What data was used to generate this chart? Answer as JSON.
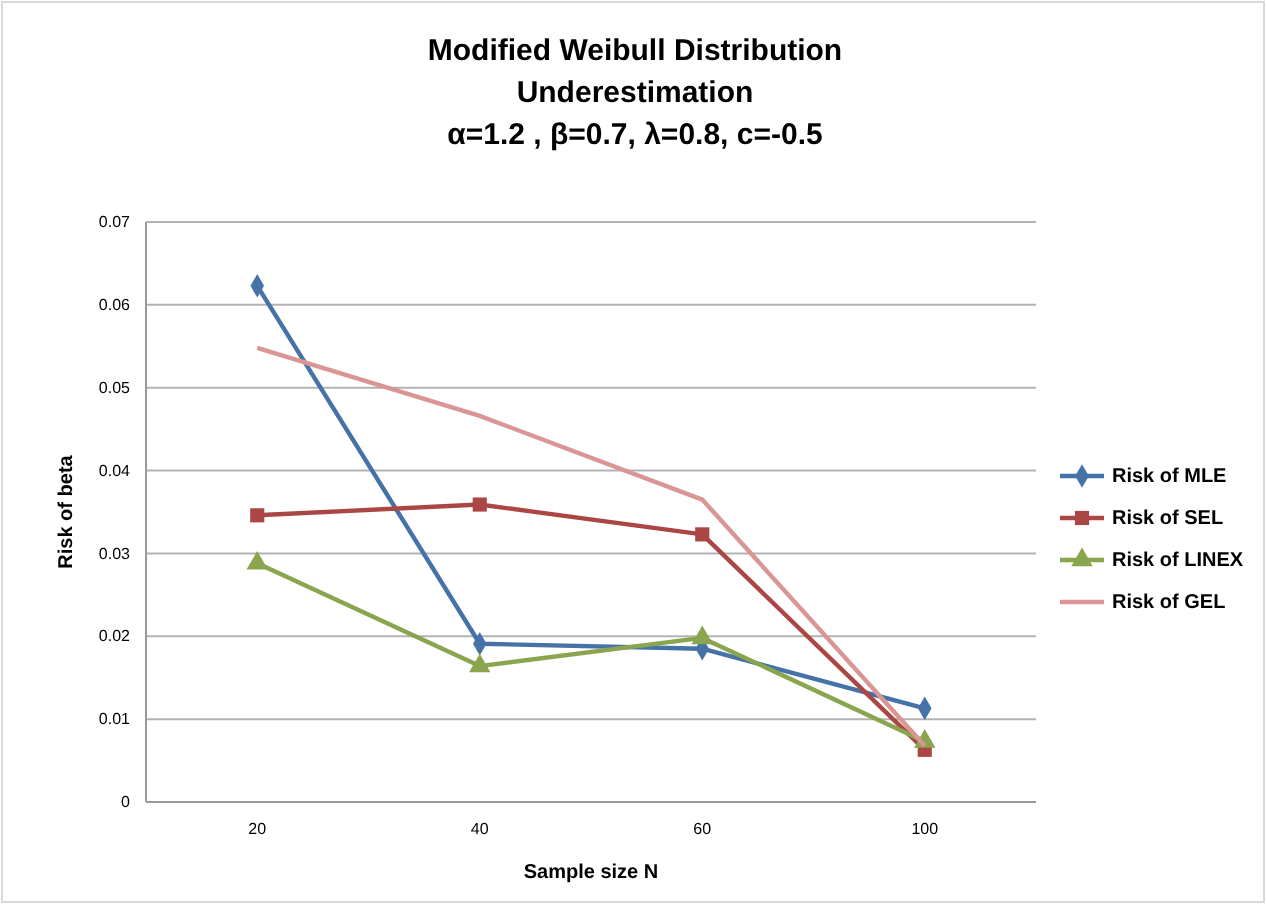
{
  "chart_data": {
    "type": "line",
    "title": "Modified Weibull Distribution\nUnderestimation\nα=1.2 , β=0.7, λ=0.8, c=-0.5",
    "xlabel": "Sample size N",
    "ylabel": "Risk of beta",
    "categories": [
      "20",
      "40",
      "60",
      "100"
    ],
    "series": [
      {
        "name": "Risk of MLE",
        "color": "#4572a7",
        "marker": "diamond",
        "values": [
          0.0623,
          0.0191,
          0.0185,
          0.0113
        ]
      },
      {
        "name": "Risk of SEL",
        "color": "#aa4643",
        "marker": "square",
        "values": [
          0.0346,
          0.0359,
          0.0323,
          0.0063
        ]
      },
      {
        "name": "Risk of LINEX",
        "color": "#89a54e",
        "marker": "triangle",
        "values": [
          0.0288,
          0.0164,
          0.0198,
          0.0073
        ]
      },
      {
        "name": "Risk of GEL",
        "color": "#d99694",
        "marker": "none",
        "values": [
          0.0548,
          0.0466,
          0.0365,
          0.0068
        ]
      }
    ],
    "ylim": [
      0,
      0.07
    ],
    "yticks": [
      0,
      0.01,
      0.02,
      0.03,
      0.04,
      0.05,
      0.06,
      0.07
    ],
    "grid": "y",
    "legend": "right"
  }
}
